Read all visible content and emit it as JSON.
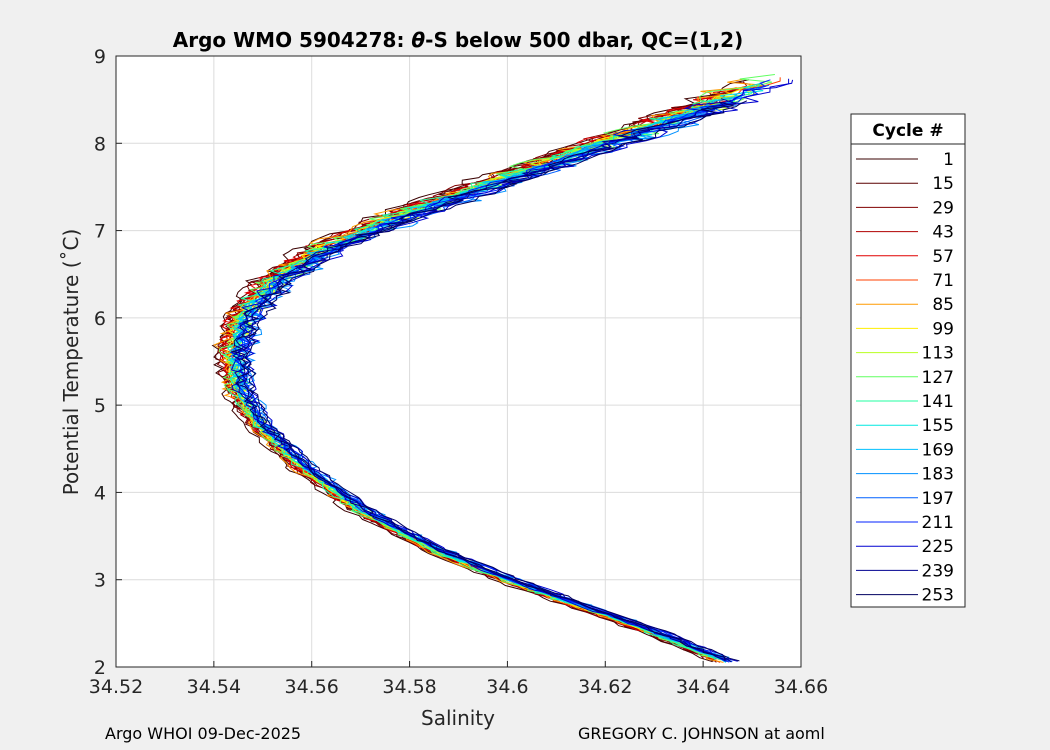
{
  "chart_data": {
    "type": "line",
    "title_prefix": "Argo WMO 5904278: ",
    "title_theta": "θ",
    "title_suffix": "-S below 500 dbar,  QC=(1,2)",
    "xlabel": "Salinity",
    "ylabel": "Potential Temperature (˚C)",
    "xlim": [
      34.52,
      34.66
    ],
    "ylim": [
      2,
      9
    ],
    "xticks": [
      "34.52",
      "34.54",
      "34.56",
      "34.58",
      "34.6",
      "34.62",
      "34.64",
      "34.66"
    ],
    "yticks": [
      "2",
      "3",
      "4",
      "5",
      "6",
      "7",
      "8",
      "9"
    ],
    "grid": true,
    "legend": {
      "title": "Cycle #",
      "placement": "right-outside",
      "entries": [
        {
          "label": "1",
          "color": "#3a0000"
        },
        {
          "label": "15",
          "color": "#5a0000"
        },
        {
          "label": "29",
          "color": "#800000"
        },
        {
          "label": "43",
          "color": "#b00000"
        },
        {
          "label": "57",
          "color": "#e00000"
        },
        {
          "label": "71",
          "color": "#ff4000"
        },
        {
          "label": "85",
          "color": "#ff9a00"
        },
        {
          "label": "99",
          "color": "#ffee00"
        },
        {
          "label": "113",
          "color": "#b8ff20"
        },
        {
          "label": "127",
          "color": "#60ff60"
        },
        {
          "label": "141",
          "color": "#20ffa0"
        },
        {
          "label": "155",
          "color": "#00e8e0"
        },
        {
          "label": "169",
          "color": "#00c0ff"
        },
        {
          "label": "183",
          "color": "#0090ff"
        },
        {
          "label": "197",
          "color": "#0060ff"
        },
        {
          "label": "211",
          "color": "#0020ff"
        },
        {
          "label": "225",
          "color": "#0000d0"
        },
        {
          "label": "239",
          "color": "#000090"
        },
        {
          "label": "253",
          "color": "#000060"
        }
      ]
    },
    "profile_curve": [
      [
        34.645,
        2.05
      ],
      [
        34.63,
        2.4
      ],
      [
        34.615,
        2.7
      ],
      [
        34.6,
        3.0
      ],
      [
        34.585,
        3.35
      ],
      [
        34.57,
        3.8
      ],
      [
        34.558,
        4.3
      ],
      [
        34.549,
        4.8
      ],
      [
        34.545,
        5.2
      ],
      [
        34.544,
        5.6
      ],
      [
        34.546,
        6.0
      ],
      [
        34.552,
        6.4
      ],
      [
        34.563,
        6.8
      ],
      [
        34.58,
        7.2
      ],
      [
        34.6,
        7.6
      ],
      [
        34.62,
        8.0
      ],
      [
        34.64,
        8.4
      ],
      [
        34.655,
        8.75
      ]
    ]
  },
  "footer": {
    "left": "Argo WHOI 09-Dec-2025",
    "right": "GREGORY C. JOHNSON at aoml"
  }
}
